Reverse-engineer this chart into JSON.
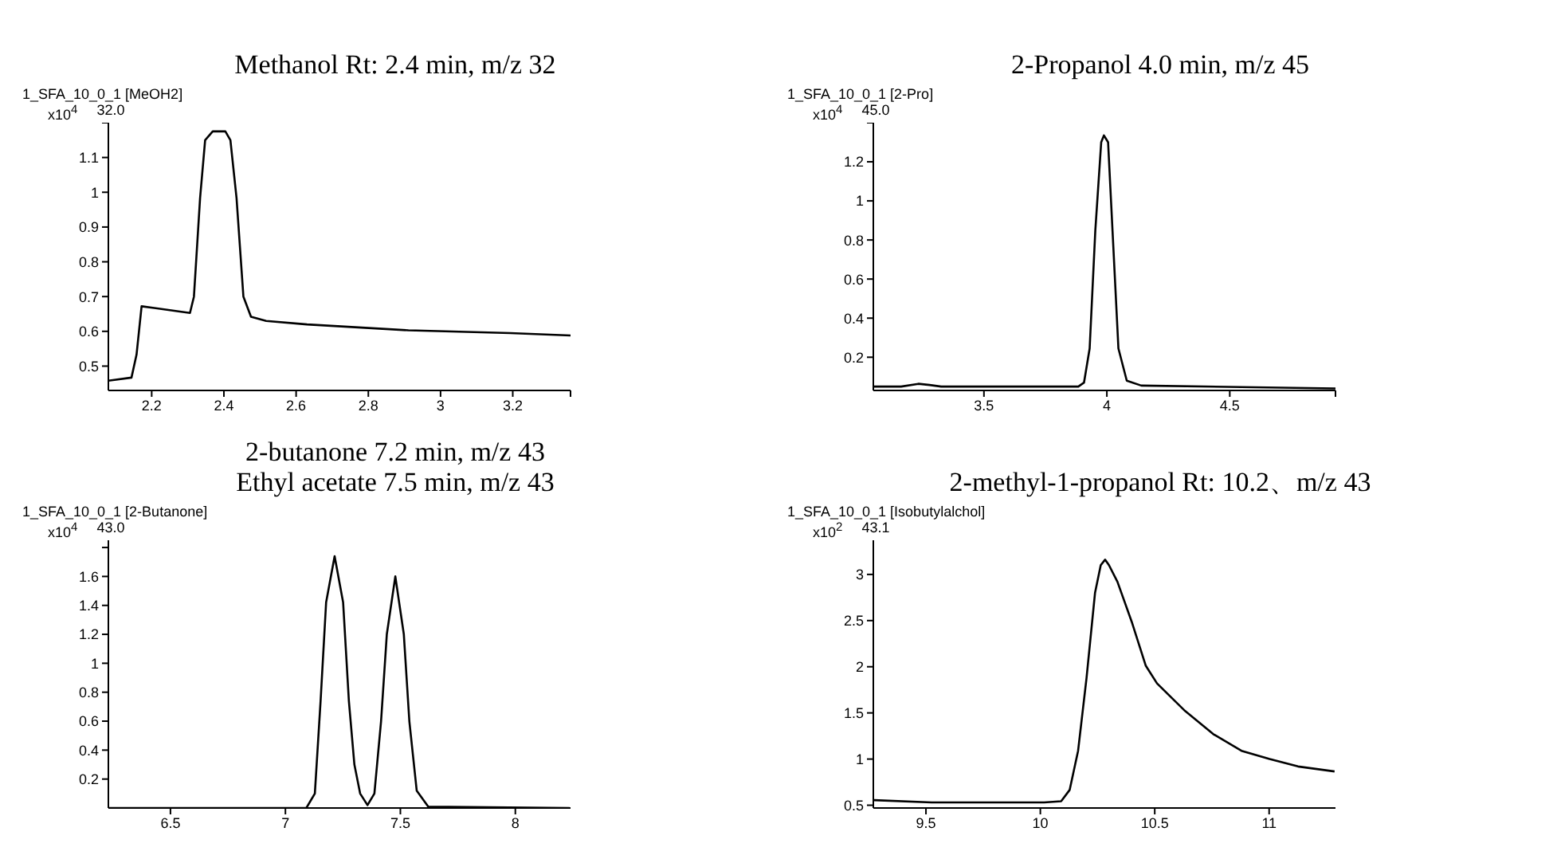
{
  "chart_data": [
    {
      "type": "line",
      "title": "Methanol Rt: 2.4 min, m/z 32",
      "subtitle": "1_SFA_10_0_1 [MeOH2]",
      "ylabel": "x10$^{4}$",
      "annotations": [
        "32.0"
      ],
      "xlim": [
        2.08,
        3.36
      ],
      "xticks": [
        2.2,
        2.4,
        2.6,
        2.8,
        3,
        3.2,
        {
          "value": 3.36,
          "label": null
        }
      ],
      "ylim": [
        0.43,
        1.2
      ],
      "yticks": [
        0.5,
        0.6,
        0.7,
        0.8,
        0.9,
        1,
        1.1,
        {
          "value": 1.2,
          "label": null
        }
      ],
      "series": [
        {
          "color": "#000000",
          "x": [
            2.08,
            2.144,
            2.158,
            2.172,
            2.207,
            2.306,
            2.317,
            2.334,
            2.348,
            2.369,
            2.404,
            2.418,
            2.435,
            2.454,
            2.475,
            2.517,
            2.63,
            2.911,
            3.193,
            3.36
          ],
          "values": [
            0.458,
            0.467,
            0.533,
            0.672,
            0.667,
            0.653,
            0.7,
            0.983,
            1.15,
            1.175,
            1.175,
            1.15,
            0.983,
            0.7,
            0.642,
            0.63,
            0.62,
            0.603,
            0.595,
            0.588
          ]
        }
      ]
    },
    {
      "type": "line",
      "title": "2-Propanol 4.0 min, m/z 45",
      "subtitle": "1_SFA_10_0_1 [2-Pro]",
      "ylabel": "x10$^{4}$",
      "annotations": [
        "45.0"
      ],
      "xlim": [
        3.05,
        4.93
      ],
      "xticks": [
        3.5,
        4,
        4.5,
        {
          "value": 4.93,
          "label": null
        }
      ],
      "ylim": [
        0.03,
        1.4
      ],
      "yticks": [
        0.2,
        0.4,
        0.6,
        0.8,
        1,
        1.2,
        {
          "value": 1.4,
          "label": null
        }
      ],
      "series": [
        {
          "color": "#000000",
          "x": [
            3.05,
            3.163,
            3.233,
            3.279,
            3.326,
            3.884,
            3.907,
            3.93,
            3.953,
            3.977,
            3.988,
            4.005,
            4.023,
            4.047,
            4.081,
            4.14,
            4.93
          ],
          "values": [
            0.05,
            0.05,
            0.064,
            0.058,
            0.05,
            0.05,
            0.07,
            0.245,
            0.848,
            1.3,
            1.335,
            1.3,
            0.848,
            0.245,
            0.08,
            0.055,
            0.04
          ]
        }
      ]
    },
    {
      "type": "line",
      "title": "2-butanone 7.2 min, m/z 43\nEthyl acetate 7.5 min, m/z 43",
      "subtitle": "1_SFA_10_0_1 [2-Butanone]",
      "ylabel": "x10$^{4}$",
      "annotations": [
        "43.0"
      ],
      "xlim": [
        6.23,
        8.24
      ],
      "xticks": [
        6.5,
        7,
        7.5,
        8
      ],
      "ylim": [
        0,
        1.85
      ],
      "yticks": [
        0.2,
        0.4,
        0.6,
        0.8,
        1,
        1.2,
        1.4,
        1.6,
        {
          "value": 1.8,
          "label": null
        }
      ],
      "series": [
        {
          "color": "#000000",
          "x": [
            6.23,
            7.091,
            7.128,
            7.153,
            7.177,
            7.214,
            7.251,
            7.276,
            7.3,
            7.325,
            7.357,
            7.387,
            7.416,
            7.441,
            7.478,
            7.515,
            7.539,
            7.571,
            7.621,
            8.236
          ],
          "values": [
            0,
            0,
            0.1,
            0.74,
            1.42,
            1.74,
            1.42,
            0.74,
            0.3,
            0.1,
            0.02,
            0.1,
            0.6,
            1.2,
            1.6,
            1.2,
            0.6,
            0.12,
            0.01,
            0
          ]
        }
      ]
    },
    {
      "type": "line",
      "title": "2-methyl-1-propanol Rt: 10.2、m/z 43",
      "subtitle": "1_SFA_10_0_1 [Isobutylalchol]",
      "ylabel": "x10$^{2}$",
      "annotations": [
        "43.1"
      ],
      "xlim": [
        9.27,
        11.29
      ],
      "xticks": [
        9.5,
        10,
        10.5,
        11
      ],
      "ylim": [
        0.47,
        3.37
      ],
      "yticks": [
        0.5,
        1,
        1.5,
        2,
        2.5,
        3
      ],
      "series": [
        {
          "color": "#000000",
          "x": [
            9.273,
            9.525,
            10.017,
            10.091,
            10.128,
            10.165,
            10.202,
            10.239,
            10.264,
            10.283,
            10.3,
            10.337,
            10.399,
            10.461,
            10.51,
            10.633,
            10.756,
            10.879,
            11.002,
            11.126,
            11.286
          ],
          "values": [
            0.555,
            0.53,
            0.53,
            0.543,
            0.665,
            1.09,
            1.88,
            2.8,
            3.1,
            3.16,
            3.1,
            2.92,
            2.49,
            2.01,
            1.82,
            1.52,
            1.27,
            1.09,
            1.0,
            0.92,
            0.866
          ]
        }
      ]
    }
  ]
}
